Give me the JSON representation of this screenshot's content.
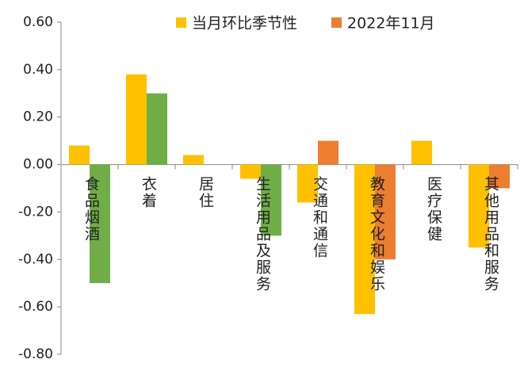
{
  "chart_data": {
    "type": "bar",
    "categories": [
      "食品烟酒",
      "衣着",
      "居住",
      "生活用品及服务",
      "交通和通信",
      "教育文化和娱乐",
      "医疗保健",
      "其他用品和服务"
    ],
    "series": [
      {
        "name": "当月环比季节性",
        "color": "#FFC000",
        "values": [
          0.08,
          0.38,
          0.04,
          -0.06,
          -0.16,
          -0.63,
          0.1,
          -0.35
        ]
      },
      {
        "name": "2022年11月",
        "color": "#ED7D31",
        "colors": [
          "#70AD47",
          "#70AD47",
          "#70AD47",
          "#70AD47",
          "#ED7D31",
          "#ED7D31",
          "#ED7D31",
          "#ED7D31"
        ],
        "values": [
          -0.5,
          0.3,
          0,
          -0.3,
          0.1,
          -0.4,
          0,
          -0.1
        ]
      }
    ],
    "ylim": [
      -0.8,
      0.6
    ],
    "yticks": [
      {
        "value": 0.6,
        "label": "0.60"
      },
      {
        "value": 0.4,
        "label": "0.40"
      },
      {
        "value": 0.2,
        "label": "0.20"
      },
      {
        "value": 0,
        "label": "0.00"
      },
      {
        "value": -0.2,
        "label": "-0.20"
      },
      {
        "value": -0.4,
        "label": "-0.40"
      },
      {
        "value": -0.6,
        "label": "-0.60"
      },
      {
        "value": -0.8,
        "label": "-0.80"
      }
    ],
    "grid": false,
    "legend": "top"
  }
}
